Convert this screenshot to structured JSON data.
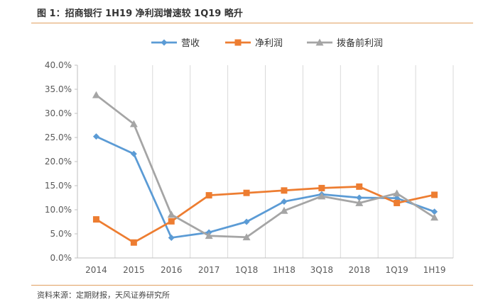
{
  "header": {
    "title": "图 1：招商银行 1H19 净利润增速较 1Q19 略升"
  },
  "footer": {
    "source": "资料来源：定期财报，天风证券研究所"
  },
  "chart_data": {
    "type": "line",
    "categories": [
      "2014",
      "2015",
      "2016",
      "2017",
      "1Q18",
      "1H18",
      "3Q18",
      "2018",
      "1Q19",
      "1H19"
    ],
    "series": [
      {
        "name": "营收",
        "color": "#5b9bd5",
        "marker": "diamond",
        "values": [
          25.2,
          21.6,
          4.2,
          5.3,
          7.5,
          11.7,
          13.2,
          12.5,
          12.4,
          9.6
        ]
      },
      {
        "name": "净利润",
        "color": "#ed7d31",
        "marker": "square",
        "values": [
          8.0,
          3.2,
          7.6,
          13.0,
          13.5,
          14.0,
          14.5,
          14.8,
          11.4,
          13.1
        ]
      },
      {
        "name": "拨备前利润",
        "color": "#a5a5a5",
        "marker": "triangle",
        "values": [
          33.8,
          27.8,
          9.0,
          4.6,
          4.3,
          9.8,
          12.8,
          11.4,
          13.4,
          8.4
        ]
      }
    ],
    "yticks": [
      "0.0%",
      "5.0%",
      "10.0%",
      "15.0%",
      "20.0%",
      "25.0%",
      "30.0%",
      "35.0%",
      "40.0%"
    ],
    "ylim": [
      0,
      40
    ],
    "grid": "vertical",
    "legend_position": "top"
  }
}
